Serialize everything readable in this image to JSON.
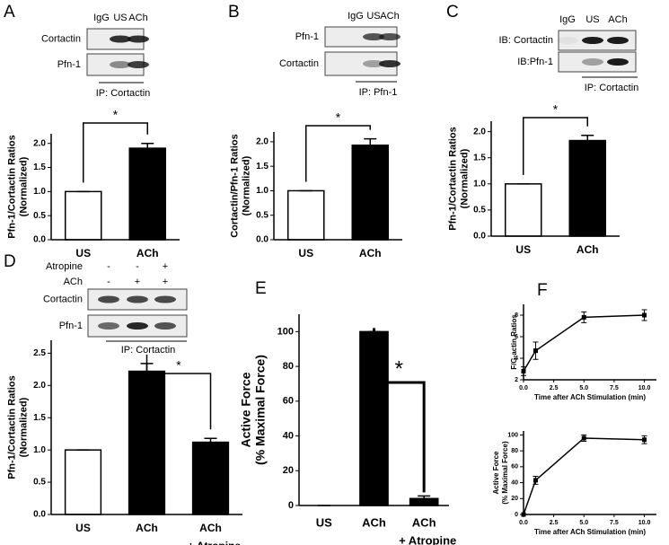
{
  "panel_labels": [
    "A",
    "B",
    "C",
    "D",
    "E",
    "F"
  ],
  "blots": [
    {
      "lanes": [
        "IgG",
        "US",
        "ACh"
      ],
      "bands": [
        "Cortactin",
        "Pfn-1"
      ],
      "ip": "IP: Cortactin"
    },
    {
      "lanes": [
        "IgG",
        "US",
        "ACh"
      ],
      "bands": [
        "Pfn-1",
        "Cortactin"
      ],
      "ip": "IP: Pfn-1"
    },
    {
      "lanes": [
        "IgG",
        "US",
        "ACh"
      ],
      "bands": [
        "IB: Cortactin",
        "IB:Pfn-1"
      ],
      "ip": "IP: Cortactin"
    },
    {
      "treatments": [
        {
          "name": "Atropine",
          "signs": [
            "-",
            "-",
            "+"
          ]
        },
        {
          "name": "ACh",
          "signs": [
            "-",
            "+",
            "+"
          ]
        }
      ],
      "bands": [
        "Cortactin",
        "Pfn-1"
      ],
      "ip": "IP: Cortactin"
    }
  ],
  "chart_data": [
    {
      "type": "bar",
      "y_label": [
        "Pfn-1/Cortactin Ratios",
        "(Normalized)"
      ],
      "categories": [
        "US",
        "ACh"
      ],
      "values": [
        1.0,
        1.9
      ],
      "errors": [
        0,
        0.1
      ],
      "colors": [
        "#ffffff",
        "#000000"
      ],
      "annotation": "*",
      "ylim": [
        0,
        2.2
      ],
      "yticks": [
        {
          "value": 0,
          "label": "0.0"
        },
        {
          "value": 0.5,
          "label": "0.5"
        },
        {
          "value": 1,
          "label": "1.0"
        },
        {
          "value": 1.5,
          "label": "1.5"
        },
        {
          "value": 2,
          "label": "2.0"
        }
      ]
    },
    {
      "type": "bar",
      "y_label": [
        "Cortactin/Pfn-1 Ratios",
        "(Normalized)"
      ],
      "categories": [
        "US",
        "ACh"
      ],
      "values": [
        1.0,
        1.93
      ],
      "errors": [
        0,
        0.13
      ],
      "colors": [
        "#ffffff",
        "#000000"
      ],
      "annotation": "*",
      "ylim": [
        0,
        2.2
      ],
      "yticks": [
        {
          "value": 0,
          "label": "0.0"
        },
        {
          "value": 0.5,
          "label": "0.5"
        },
        {
          "value": 1,
          "label": "1.0"
        },
        {
          "value": 1.5,
          "label": "1.5"
        },
        {
          "value": 2,
          "label": "2.0"
        }
      ]
    },
    {
      "type": "bar",
      "y_label": [
        "Pfn-1/Cortactin Ratios",
        "(Normalized)"
      ],
      "categories": [
        "US",
        "ACh"
      ],
      "values": [
        1.0,
        1.83
      ],
      "errors": [
        0,
        0.1
      ],
      "colors": [
        "#ffffff",
        "#000000"
      ],
      "annotation": "*",
      "ylim": [
        0,
        2.2
      ],
      "yticks": [
        {
          "value": 0,
          "label": "0.0"
        },
        {
          "value": 0.5,
          "label": "0.5"
        },
        {
          "value": 1,
          "label": "1.0"
        },
        {
          "value": 1.5,
          "label": "1.5"
        },
        {
          "value": 2,
          "label": "2.0"
        }
      ]
    },
    {
      "type": "bar",
      "y_label": [
        "Pfn-1/Cortactin Ratios",
        "(Normalized)"
      ],
      "categories": [
        "US",
        "ACh",
        "ACh"
      ],
      "category_note": "+ Atropine",
      "values": [
        1.0,
        2.22,
        1.12
      ],
      "errors": [
        0,
        0.12,
        0.06
      ],
      "colors": [
        "#ffffff",
        "#000000",
        "#000000"
      ],
      "annotation": "*",
      "ylim": [
        0,
        2.7
      ],
      "yticks": [
        {
          "value": 0,
          "label": "0.0"
        },
        {
          "value": 0.5,
          "label": "0.5"
        },
        {
          "value": 1,
          "label": "1.0"
        },
        {
          "value": 1.5,
          "label": "1.5"
        },
        {
          "value": 2,
          "label": "2.0"
        },
        {
          "value": 2.5,
          "label": "2.5"
        }
      ]
    },
    {
      "type": "bar",
      "y_label": [
        "Active Force",
        "(% Maximal Force)"
      ],
      "categories": [
        "US",
        "ACh",
        "ACh"
      ],
      "category_note": "+ Atropine",
      "values": [
        0,
        100,
        4
      ],
      "errors": [
        0,
        0,
        1.5
      ],
      "colors": [
        "#000000",
        "#000000",
        "#000000"
      ],
      "annotation": "*",
      "ylim": [
        0,
        110
      ],
      "yticks": [
        0,
        20,
        40,
        60,
        80,
        100
      ]
    },
    {
      "type": "line",
      "y_label": [
        "F/G-actin Ratios"
      ],
      "x_label": "Time after ACh Stimulation (min)",
      "x": [
        0,
        1,
        5,
        10
      ],
      "y": [
        2.8,
        4.7,
        7.8,
        8.0
      ],
      "errors": [
        0.4,
        0.8,
        0.5,
        0.5
      ],
      "color": "#000000",
      "xlim": [
        0,
        11
      ],
      "xticks": [
        {
          "value": 0,
          "label": "0.0"
        },
        {
          "value": 2.5,
          "label": "2.5"
        },
        {
          "value": 5,
          "label": "5.0"
        },
        {
          "value": 7.5,
          "label": "7.5"
        },
        {
          "value": 10,
          "label": "10.0"
        }
      ],
      "ylim": [
        2,
        9
      ],
      "yticks": [
        2,
        4,
        6,
        8
      ]
    },
    {
      "type": "line",
      "y_label": [
        "Active Force",
        "(% Maximal Force)"
      ],
      "x_label": "Time after ACh Stimulation (min)",
      "x": [
        0,
        1,
        5,
        10
      ],
      "y": [
        0,
        43,
        96,
        94
      ],
      "errors": [
        0,
        5,
        4,
        5
      ],
      "color": "#000000",
      "xlim": [
        0,
        11
      ],
      "xticks": [
        {
          "value": 0,
          "label": "0.0"
        },
        {
          "value": 2.5,
          "label": "2.5"
        },
        {
          "value": 5,
          "label": "5.0"
        },
        {
          "value": 7.5,
          "label": "7.5"
        },
        {
          "value": 10,
          "label": "10.0"
        }
      ],
      "ylim": [
        0,
        105
      ],
      "yticks": [
        0,
        20,
        40,
        60,
        80,
        100
      ]
    }
  ]
}
